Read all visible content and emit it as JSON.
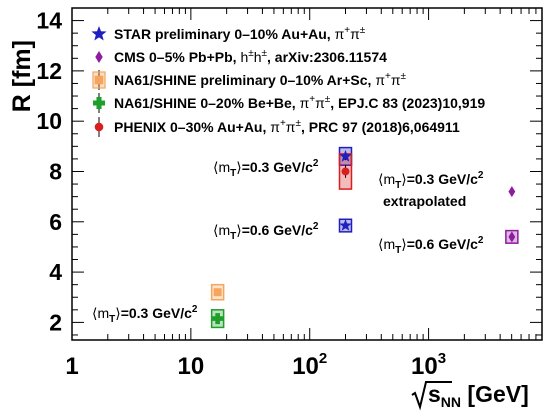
{
  "chart_data": {
    "type": "scatter",
    "xscale": "log",
    "xlim": [
      1,
      9000
    ],
    "ylim": [
      1.3,
      14.5
    ],
    "ylabel": "R [fm]",
    "xlabel": {
      "main": "s",
      "sub": "NN",
      "unit": "[GeV]"
    },
    "x_ticks": [
      {
        "value": 1,
        "label": "1"
      },
      {
        "value": 10,
        "label": "10"
      },
      {
        "value": 100,
        "base": "10",
        "exp": "2"
      },
      {
        "value": 1000,
        "base": "10",
        "exp": "3"
      }
    ],
    "y_ticks": [
      2,
      4,
      6,
      8,
      10,
      12,
      14
    ],
    "series": [
      {
        "name": "STAR preliminary 0–10% Au+Au, π⁺π±",
        "legend_main": "STAR preliminary 0–10% Au+Au, ",
        "color": "#1f1fbf",
        "marker": "star",
        "points": [
          {
            "x": 200,
            "y": 8.6,
            "err": 0.15,
            "sys": 0.35
          },
          {
            "x": 200,
            "y": 5.85,
            "err": 0.1,
            "sys": 0.25
          }
        ]
      },
      {
        "name": "CMS 0–5% Pb+Pb, h±h±, arXiv:2306.11574",
        "legend_main": "CMS 0–5% Pb+Pb, ",
        "legend_extra": ", arXiv:2306.11574",
        "pair_symbol": "h",
        "color": "#8e1c9e",
        "marker": "diamond",
        "points": [
          {
            "x": 5020,
            "y": 7.2,
            "err": 0.05,
            "sys": 0.0
          },
          {
            "x": 5020,
            "y": 5.4,
            "err": 0.1,
            "sys": 0.25
          }
        ]
      },
      {
        "name": "NA61/SHINE preliminary 0–10% Ar+Sc, π⁺π±",
        "legend_main": "NA61/SHINE preliminary 0–10% Ar+Sc, ",
        "color": "#f5a55c",
        "marker": "square",
        "points": [
          {
            "x": 16.8,
            "y": 3.2,
            "err": 0.1,
            "sys": 0.3
          }
        ]
      },
      {
        "name": "NA61/SHINE 0–20% Be+Be, π⁺π±, EPJ.C 83 (2023)10,919",
        "legend_main": "NA61/SHINE 0–20% Be+Be, ",
        "legend_extra": ", EPJ.C 83 (2023)10,919",
        "color": "#1e9e2a",
        "marker": "cross",
        "points": [
          {
            "x": 16.8,
            "y": 2.15,
            "err": 0.15,
            "sys": 0.35
          }
        ]
      },
      {
        "name": "PHENIX 0–30% Au+Au, π⁺π±, PRC 97 (2018)6,064911",
        "legend_main": "PHENIX 0–30% Au+Au, ",
        "legend_extra": ", PRC 97 (2018)6,064911",
        "color": "#d81e1e",
        "marker": "circle",
        "points": [
          {
            "x": 200,
            "y": 8.0,
            "err": 0.25,
            "sys": 0.7
          }
        ]
      }
    ],
    "annotations": [
      {
        "id": "ann-top-03",
        "value": "=0.3 GeV/c"
      },
      {
        "id": "ann-mid-06",
        "value": "=0.6 GeV/c"
      },
      {
        "id": "ann-right-03",
        "value": "=0.3 GeV/c"
      },
      {
        "id": "ann-right-extrap",
        "text": "extrapolated"
      },
      {
        "id": "ann-right-06",
        "value": "=0.6 GeV/c"
      },
      {
        "id": "ann-left-03",
        "value": "=0.3 GeV/c"
      }
    ]
  }
}
